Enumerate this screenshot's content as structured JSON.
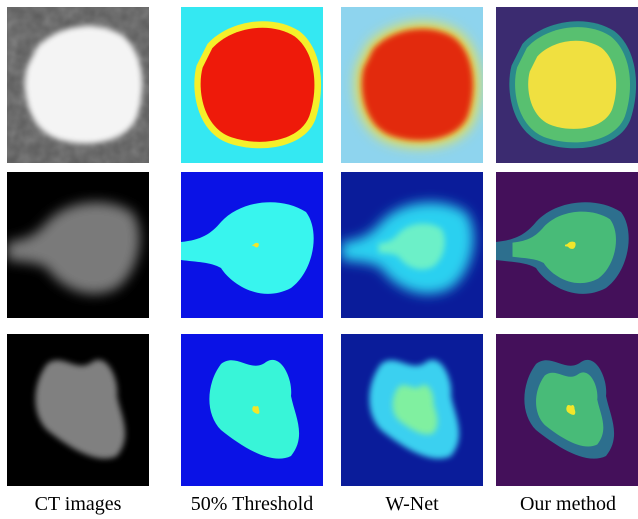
{
  "columns": [
    "CT images",
    "50% Threshold",
    "W-Net",
    "Our method"
  ]
}
